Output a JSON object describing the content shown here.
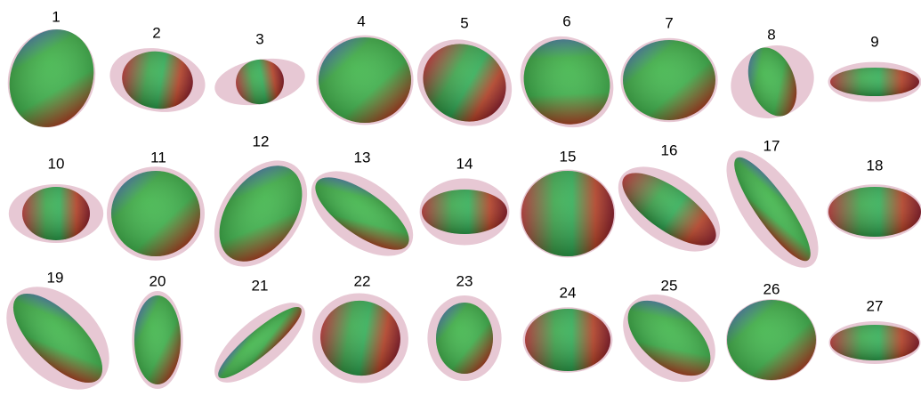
{
  "labels": [
    "1",
    "2",
    "3",
    "4",
    "5",
    "6",
    "7",
    "8",
    "9",
    "10",
    "11",
    "12",
    "13",
    "14",
    "15",
    "16",
    "17",
    "18",
    "19",
    "20",
    "21",
    "22",
    "23",
    "24",
    "25",
    "26",
    "27"
  ]
}
